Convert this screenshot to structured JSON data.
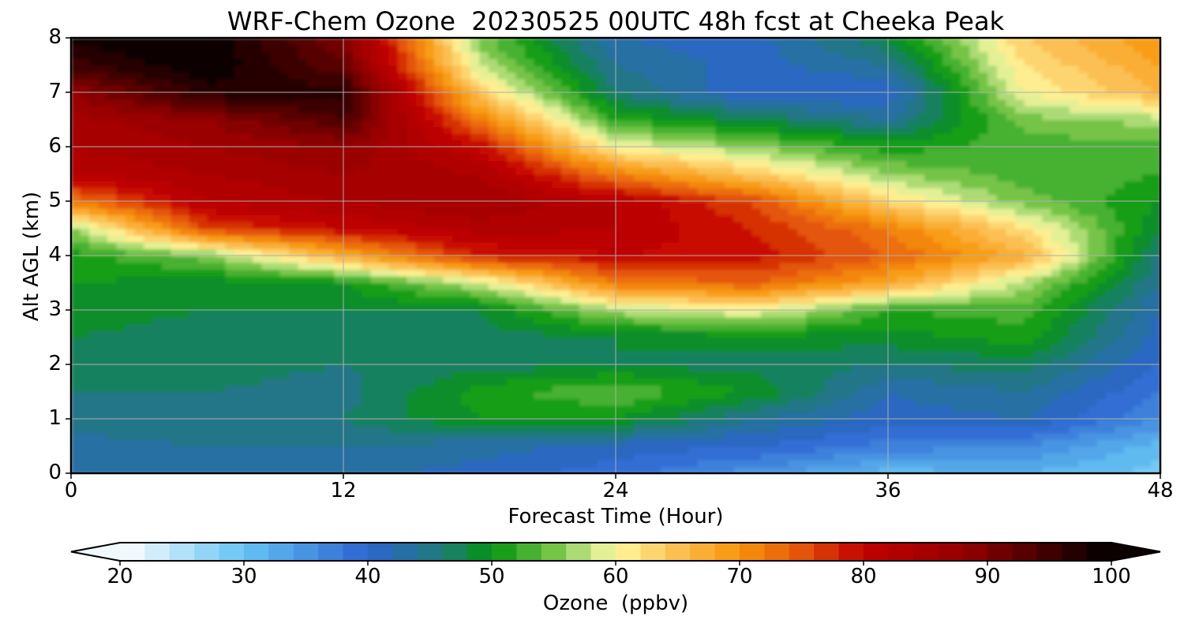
{
  "chart_data": {
    "type": "heatmap",
    "title": "WRF-Chem Ozone  20230525 00UTC 48h fcst at Cheeka Peak",
    "xlabel": "Forecast Time (Hour)",
    "ylabel": "Alt AGL (km)",
    "xlim": [
      0,
      48
    ],
    "ylim": [
      0,
      8
    ],
    "x_ticks": [
      "0",
      "12",
      "24",
      "36",
      "48"
    ],
    "y_ticks": [
      "0",
      "1",
      "2",
      "3",
      "4",
      "5",
      "6",
      "7",
      "8"
    ],
    "grid": true,
    "x": [
      0,
      6,
      12,
      18,
      24,
      30,
      36,
      42,
      48
    ],
    "y": [
      0,
      0.5,
      1,
      1.5,
      2,
      2.5,
      3,
      3.5,
      4,
      4.5,
      5,
      5.5,
      6,
      6.5,
      7,
      7.5,
      8
    ],
    "z": [
      [
        44,
        43,
        43,
        41,
        39,
        35,
        31,
        32,
        29
      ],
      [
        43,
        44,
        44,
        43,
        41,
        40,
        37,
        36,
        31
      ],
      [
        45,
        46,
        46,
        50,
        50,
        44,
        41,
        42,
        36
      ],
      [
        46,
        46,
        45,
        51,
        54,
        50,
        42,
        44,
        38
      ],
      [
        47,
        47,
        46,
        47,
        48,
        47,
        46,
        47,
        40
      ],
      [
        48,
        47,
        47,
        47,
        48,
        49,
        49,
        51,
        41
      ],
      [
        49,
        48,
        48,
        48,
        57,
        60,
        52,
        53,
        42
      ],
      [
        50,
        49,
        50,
        58,
        72,
        74,
        68,
        57,
        44
      ],
      [
        51,
        55,
        67,
        78,
        80,
        79,
        74,
        67,
        45
      ],
      [
        56,
        76,
        80,
        83,
        82,
        78,
        72,
        62,
        48
      ],
      [
        72,
        82,
        84,
        86,
        82,
        76,
        63,
        55,
        50
      ],
      [
        82,
        84,
        86,
        84,
        72,
        64,
        56,
        53,
        52
      ],
      [
        84,
        86,
        88,
        80,
        60,
        56,
        51,
        53,
        53
      ],
      [
        85,
        88,
        94,
        72,
        52,
        48,
        44,
        55,
        57
      ],
      [
        88,
        97,
        97,
        64,
        46,
        40,
        40,
        60,
        66
      ],
      [
        95,
        100,
        92,
        58,
        44,
        41,
        44,
        62,
        68
      ],
      [
        99,
        100,
        90,
        55,
        42,
        41,
        48,
        64,
        70
      ]
    ],
    "colorbar": {
      "label": "Ozone  (ppbv)",
      "min": 20,
      "max": 100,
      "step": 2,
      "extend": "both",
      "ticks": [
        "20",
        "30",
        "40",
        "50",
        "60",
        "70",
        "80",
        "90",
        "100"
      ],
      "stops": [
        [
          20,
          "#ffffff"
        ],
        [
          30,
          "#64c3f4"
        ],
        [
          40,
          "#2c64d0"
        ],
        [
          46,
          "#1f7a78"
        ],
        [
          50,
          "#02950e"
        ],
        [
          55,
          "#74c446"
        ],
        [
          58,
          "#c8e68c"
        ],
        [
          60,
          "#fffaa0"
        ],
        [
          64,
          "#fcc860"
        ],
        [
          70,
          "#f7940a"
        ],
        [
          75,
          "#e4540a"
        ],
        [
          80,
          "#c10000"
        ],
        [
          88,
          "#960000"
        ],
        [
          94,
          "#4a0000"
        ],
        [
          100,
          "#000000"
        ]
      ]
    }
  }
}
